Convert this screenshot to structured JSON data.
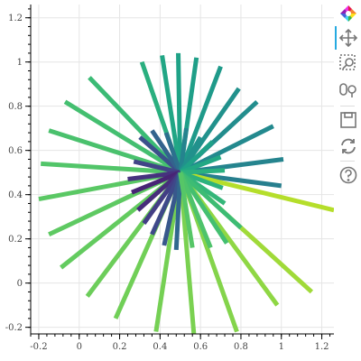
{
  "toolbar": {
    "tools": [
      {
        "name": "bokeh-logo-icon",
        "interactable": true
      },
      {
        "name": "pan-icon",
        "interactable": true,
        "active": true
      },
      {
        "name": "box-zoom-icon",
        "interactable": true
      },
      {
        "name": "wheel-zoom-icon",
        "interactable": true
      },
      {
        "name": "save-icon",
        "interactable": true
      },
      {
        "name": "reset-icon",
        "interactable": true
      },
      {
        "name": "help-icon",
        "interactable": true
      }
    ],
    "accent_color": "#26aae1"
  },
  "chart_data": {
    "type": "segment",
    "title": "",
    "xlabel": "",
    "ylabel": "",
    "xlim": [
      -0.24,
      1.26
    ],
    "ylim": [
      -0.23,
      1.26
    ],
    "x_ticks": [
      -0.2,
      0,
      0.2,
      0.4,
      0.6,
      0.8,
      1,
      1.2
    ],
    "x_tick_labels": [
      "-0.2",
      "0",
      "0.2",
      "0.4",
      "0.6",
      "0.8",
      "1",
      "1.2"
    ],
    "y_ticks": [
      -0.2,
      0,
      0.2,
      0.4,
      0.6,
      0.8,
      1,
      1.2
    ],
    "y_tick_labels": [
      "-0.2",
      "0",
      "0.2",
      "0.4",
      "0.6",
      "0.8",
      "1",
      "1.2"
    ],
    "grid": true,
    "line_width": 5,
    "segments": [
      {
        "x0": 0.5,
        "y0": 0.5,
        "x1": 0.49,
        "y1": 1.04,
        "color": "#1fa287"
      },
      {
        "x0": 0.5,
        "y0": 0.5,
        "x1": 0.41,
        "y1": 1.03,
        "color": "#21a685"
      },
      {
        "x0": 0.5,
        "y0": 0.5,
        "x1": 0.58,
        "y1": 1.02,
        "color": "#1f9f88"
      },
      {
        "x0": 0.5,
        "y0": 0.5,
        "x1": 0.31,
        "y1": 1.0,
        "color": "#2aaf7f"
      },
      {
        "x0": 0.5,
        "y0": 0.5,
        "x1": 0.7,
        "y1": 0.98,
        "color": "#1f9a8a"
      },
      {
        "x0": 0.5,
        "y0": 0.5,
        "x1": 0.05,
        "y1": 0.93,
        "color": "#3bbb75"
      },
      {
        "x0": 0.5,
        "y0": 0.5,
        "x1": 0.79,
        "y1": 0.88,
        "color": "#21918c"
      },
      {
        "x0": 0.5,
        "y0": 0.5,
        "x1": -0.07,
        "y1": 0.82,
        "color": "#44bf70"
      },
      {
        "x0": 0.5,
        "y0": 0.5,
        "x1": 0.88,
        "y1": 0.82,
        "color": "#228d8d"
      },
      {
        "x0": 0.5,
        "y0": 0.5,
        "x1": -0.15,
        "y1": 0.69,
        "color": "#4ac16d"
      },
      {
        "x0": 0.5,
        "y0": 0.5,
        "x1": 0.96,
        "y1": 0.71,
        "color": "#23898e"
      },
      {
        "x0": 0.5,
        "y0": 0.5,
        "x1": 1.01,
        "y1": 0.56,
        "color": "#25848e"
      },
      {
        "x0": 0.5,
        "y0": 0.5,
        "x1": -0.19,
        "y1": 0.54,
        "color": "#52c569"
      },
      {
        "x0": 0.5,
        "y0": 0.5,
        "x1": 1.0,
        "y1": 0.44,
        "color": "#277f8e"
      },
      {
        "x0": 0.5,
        "y0": 0.5,
        "x1": -0.2,
        "y1": 0.38,
        "color": "#5ac864"
      },
      {
        "x0": 0.5,
        "y0": 0.5,
        "x1": 1.26,
        "y1": 0.33,
        "color": "#b5de2b"
      },
      {
        "x0": 0.5,
        "y0": 0.5,
        "x1": -0.15,
        "y1": 0.22,
        "color": "#5ec962"
      },
      {
        "x0": 0.5,
        "y0": 0.5,
        "x1": 1.15,
        "y1": -0.04,
        "color": "#a0da39"
      },
      {
        "x0": 0.5,
        "y0": 0.5,
        "x1": -0.09,
        "y1": 0.07,
        "color": "#63cb5f"
      },
      {
        "x0": 0.5,
        "y0": 0.5,
        "x1": 0.98,
        "y1": -0.1,
        "color": "#8fd744"
      },
      {
        "x0": 0.5,
        "y0": 0.5,
        "x1": 0.04,
        "y1": -0.06,
        "color": "#6ccd5a"
      },
      {
        "x0": 0.5,
        "y0": 0.5,
        "x1": 0.78,
        "y1": -0.22,
        "color": "#84d44b"
      },
      {
        "x0": 0.5,
        "y0": 0.5,
        "x1": 0.18,
        "y1": -0.16,
        "color": "#70cf57"
      },
      {
        "x0": 0.5,
        "y0": 0.5,
        "x1": 0.57,
        "y1": -0.26,
        "color": "#7ad151"
      },
      {
        "x0": 0.5,
        "y0": 0.5,
        "x1": 0.38,
        "y1": -0.22,
        "color": "#75d054"
      },
      {
        "x0": 0.5,
        "y0": 0.5,
        "x1": 0.3,
        "y1": 0.66,
        "color": "#3b518b"
      },
      {
        "x0": 0.5,
        "y0": 0.5,
        "x1": 0.36,
        "y1": 0.69,
        "color": "#33638d"
      },
      {
        "x0": 0.5,
        "y0": 0.5,
        "x1": 0.43,
        "y1": 0.68,
        "color": "#2d708e"
      },
      {
        "x0": 0.5,
        "y0": 0.5,
        "x1": 0.53,
        "y1": 0.7,
        "color": "#25838e"
      },
      {
        "x0": 0.5,
        "y0": 0.5,
        "x1": 0.6,
        "y1": 0.66,
        "color": "#21918c"
      },
      {
        "x0": 0.5,
        "y0": 0.5,
        "x1": 0.66,
        "y1": 0.64,
        "color": "#1fa188"
      },
      {
        "x0": 0.5,
        "y0": 0.5,
        "x1": 0.27,
        "y1": 0.55,
        "color": "#414487"
      },
      {
        "x0": 0.5,
        "y0": 0.5,
        "x1": 0.7,
        "y1": 0.57,
        "color": "#22a884"
      },
      {
        "x0": 0.5,
        "y0": 0.5,
        "x1": 0.24,
        "y1": 0.47,
        "color": "#46327e"
      },
      {
        "x0": 0.5,
        "y0": 0.5,
        "x1": 0.72,
        "y1": 0.51,
        "color": "#2ab07f"
      },
      {
        "x0": 0.5,
        "y0": 0.5,
        "x1": 0.26,
        "y1": 0.41,
        "color": "#482475"
      },
      {
        "x0": 0.5,
        "y0": 0.5,
        "x1": 0.71,
        "y1": 0.43,
        "color": "#2db27d"
      },
      {
        "x0": 0.5,
        "y0": 0.5,
        "x1": 0.29,
        "y1": 0.33,
        "color": "#472d7b"
      },
      {
        "x0": 0.5,
        "y0": 0.5,
        "x1": 0.72,
        "y1": 0.36,
        "color": "#34b679"
      },
      {
        "x0": 0.5,
        "y0": 0.5,
        "x1": 0.32,
        "y1": 0.27,
        "color": "#433e85"
      },
      {
        "x0": 0.5,
        "y0": 0.5,
        "x1": 0.8,
        "y1": 0.25,
        "color": "#3dbc74"
      },
      {
        "x0": 0.5,
        "y0": 0.5,
        "x1": 0.36,
        "y1": 0.22,
        "color": "#3e4989"
      },
      {
        "x0": 0.5,
        "y0": 0.5,
        "x1": 0.73,
        "y1": 0.18,
        "color": "#44bf70"
      },
      {
        "x0": 0.5,
        "y0": 0.5,
        "x1": 0.42,
        "y1": 0.17,
        "color": "#38588c"
      },
      {
        "x0": 0.5,
        "y0": 0.5,
        "x1": 0.65,
        "y1": 0.16,
        "color": "#4ec36b"
      },
      {
        "x0": 0.5,
        "y0": 0.5,
        "x1": 0.48,
        "y1": 0.15,
        "color": "#31688e"
      },
      {
        "x0": 0.5,
        "y0": 0.5,
        "x1": 0.56,
        "y1": 0.16,
        "color": "#56c667"
      }
    ]
  }
}
